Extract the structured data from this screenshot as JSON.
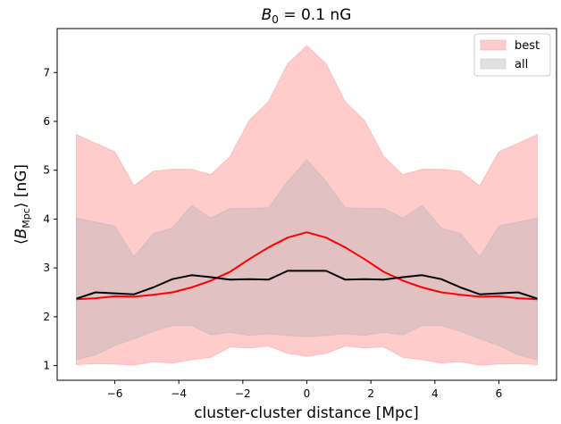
{
  "chart_data": {
    "type": "area",
    "title": "B0 = 0.1 nG",
    "title_parts": {
      "symbol": "B",
      "sub": "0",
      "rest": " = 0.1 nG"
    },
    "xlabel": "cluster-cluster distance [Mpc]",
    "ylabel": "⟨B_Mpc⟩ [nG]",
    "ylabel_parts": {
      "open": "⟨",
      "symbol": "B",
      "sub": "Mpc",
      "close": "⟩ [nG]"
    },
    "xlim": [
      -7.8,
      7.8
    ],
    "ylim": [
      0.7,
      7.9
    ],
    "xticks": [
      -6,
      -4,
      -2,
      0,
      2,
      4,
      6
    ],
    "yticks": [
      1,
      2,
      3,
      4,
      5,
      6,
      7
    ],
    "grid": false,
    "legend_position": "top-right",
    "x": [
      -7.2,
      -6.6,
      -6.0,
      -5.4,
      -4.8,
      -4.2,
      -3.6,
      -3.0,
      -2.4,
      -1.8,
      -1.2,
      -0.6,
      0.0,
      0.6,
      1.2,
      1.8,
      2.4,
      3.0,
      3.6,
      4.2,
      4.8,
      5.4,
      6.0,
      6.6,
      7.2
    ],
    "bands": [
      {
        "name": "best",
        "color": "#ff9999",
        "opacity": 0.5,
        "upper": [
          5.73,
          5.55,
          5.38,
          4.68,
          4.98,
          5.02,
          5.02,
          4.91,
          5.28,
          6.02,
          6.4,
          7.18,
          7.55,
          7.18,
          6.4,
          6.02,
          5.28,
          4.91,
          5.02,
          5.02,
          4.98,
          4.68,
          5.38,
          5.55,
          5.73
        ],
        "lower": [
          1.02,
          1.04,
          1.03,
          1.01,
          1.08,
          1.05,
          1.12,
          1.17,
          1.38,
          1.36,
          1.4,
          1.25,
          1.19,
          1.25,
          1.4,
          1.36,
          1.38,
          1.17,
          1.12,
          1.05,
          1.08,
          1.01,
          1.03,
          1.04,
          1.02
        ]
      },
      {
        "name": "all",
        "color": "#b0b0b0",
        "opacity": 0.38,
        "upper": [
          4.02,
          3.94,
          3.86,
          3.23,
          3.7,
          3.82,
          4.28,
          4.02,
          4.22,
          4.22,
          4.23,
          4.77,
          5.22,
          4.77,
          4.23,
          4.22,
          4.22,
          4.02,
          4.28,
          3.82,
          3.7,
          3.23,
          3.86,
          3.94,
          4.02
        ],
        "lower": [
          1.12,
          1.22,
          1.41,
          1.55,
          1.7,
          1.82,
          1.82,
          1.63,
          1.68,
          1.62,
          1.65,
          1.62,
          1.59,
          1.62,
          1.65,
          1.62,
          1.68,
          1.63,
          1.82,
          1.82,
          1.7,
          1.55,
          1.41,
          1.22,
          1.12
        ]
      }
    ],
    "series": [
      {
        "color": "#ff0000",
        "values": [
          2.36,
          2.38,
          2.42,
          2.41,
          2.45,
          2.5,
          2.6,
          2.74,
          2.92,
          3.18,
          3.42,
          3.62,
          3.73,
          3.62,
          3.42,
          3.18,
          2.92,
          2.74,
          2.6,
          2.5,
          2.45,
          2.41,
          2.42,
          2.38,
          2.36
        ]
      },
      {
        "color": "#000000",
        "values": [
          2.37,
          2.5,
          2.48,
          2.46,
          2.6,
          2.77,
          2.85,
          2.81,
          2.76,
          2.77,
          2.76,
          2.94,
          2.94,
          2.94,
          2.76,
          2.77,
          2.76,
          2.81,
          2.85,
          2.77,
          2.6,
          2.46,
          2.48,
          2.5,
          2.37
        ]
      }
    ]
  }
}
